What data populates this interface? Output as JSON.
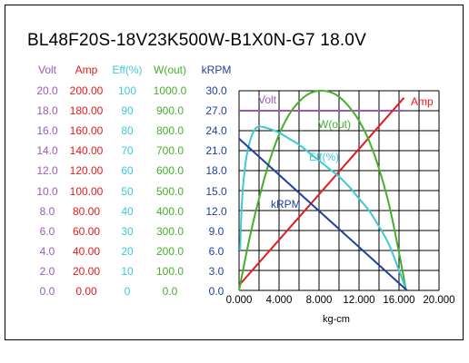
{
  "title": "BL48F20S-18V23K500W-B1X0N-G7   18.0V",
  "columns": [
    {
      "name": "Volt",
      "color": "#9b59b6",
      "ticks": [
        "20.0",
        "18.0",
        "16.0",
        "14.0",
        "12.0",
        "10.0",
        "8.0",
        "6.0",
        "4.0",
        "2.0",
        "0.0"
      ]
    },
    {
      "name": "Amp",
      "color": "#e41a1c",
      "ticks": [
        "200.00",
        "180.00",
        "160.00",
        "140.00",
        "120.00",
        "100.00",
        "80.00",
        "60.00",
        "40.00",
        "20.00",
        "0.00"
      ]
    },
    {
      "name": "Eff(%)",
      "color": "#3ec9d6",
      "ticks": [
        "100",
        "90",
        "80",
        "70",
        "60",
        "50",
        "40",
        "30",
        "20",
        "10",
        "0"
      ]
    },
    {
      "name": "W(out)",
      "color": "#44b02a",
      "ticks": [
        "1000.0",
        "900.0",
        "800.0",
        "700.0",
        "600.0",
        "500.0",
        "400.0",
        "300.0",
        "200.0",
        "100.0",
        "0.0"
      ]
    },
    {
      "name": "kRPM",
      "color": "#1f3f9e",
      "ticks": [
        "30.0",
        "27.0",
        "24.0",
        "21.0",
        "18.0",
        "15.0",
        "12.0",
        "9.0",
        "6.0",
        "3.0",
        "0.0"
      ]
    }
  ],
  "chart_data": {
    "type": "line",
    "xlabel": "kg-cm",
    "xlim": [
      0,
      20
    ],
    "x_ticks": [
      "0.000",
      "4.000",
      "8.000",
      "12.000",
      "16.000",
      "20.000"
    ],
    "grid": true,
    "series": [
      {
        "name": "Volt",
        "color": "#9b59b6",
        "ylim": [
          0,
          20
        ],
        "points": [
          [
            0,
            18.0
          ],
          [
            16.5,
            18.0
          ]
        ]
      },
      {
        "name": "Amp",
        "color": "#e41a1c",
        "ylim": [
          0,
          200
        ],
        "points": [
          [
            0,
            5
          ],
          [
            16.5,
            193
          ]
        ]
      },
      {
        "name": "W(out)",
        "color": "#44b02a",
        "ylim": [
          0,
          1000
        ],
        "points": [
          [
            0,
            0
          ],
          [
            1,
            250
          ],
          [
            2,
            460
          ],
          [
            3,
            640
          ],
          [
            4,
            780
          ],
          [
            5,
            880
          ],
          [
            6,
            945
          ],
          [
            7,
            985
          ],
          [
            8,
            1000
          ],
          [
            9,
            995
          ],
          [
            10,
            970
          ],
          [
            11,
            920
          ],
          [
            12,
            850
          ],
          [
            13,
            750
          ],
          [
            14,
            610
          ],
          [
            15,
            430
          ],
          [
            16,
            190
          ],
          [
            16.7,
            0
          ]
        ]
      },
      {
        "name": "Eff(%)",
        "color": "#3ec9d6",
        "ylim": [
          0,
          100
        ],
        "points": [
          [
            0.1,
            20
          ],
          [
            0.3,
            45
          ],
          [
            0.6,
            62
          ],
          [
            1,
            73
          ],
          [
            1.5,
            80
          ],
          [
            2,
            82
          ],
          [
            3,
            81
          ],
          [
            4,
            79
          ],
          [
            5,
            76
          ],
          [
            6,
            73
          ],
          [
            7,
            69
          ],
          [
            8,
            65
          ],
          [
            9,
            61
          ],
          [
            10,
            57
          ],
          [
            11,
            52
          ],
          [
            12,
            46
          ],
          [
            13,
            40
          ],
          [
            14,
            32
          ],
          [
            15,
            23
          ],
          [
            16,
            10
          ],
          [
            16.6,
            2
          ]
        ]
      },
      {
        "name": "kRPM",
        "color": "#1f3f9e",
        "ylim": [
          0,
          30
        ],
        "points": [
          [
            0,
            22.8
          ],
          [
            16.8,
            0
          ]
        ]
      }
    ],
    "annotations": [
      {
        "text": "Volt",
        "color": "#9b59b6"
      },
      {
        "text": "Amp",
        "color": "#e41a1c"
      },
      {
        "text": "W(out)",
        "color": "#44b02a"
      },
      {
        "text": "Eff(%)",
        "color": "#3ec9d6"
      },
      {
        "text": "kRPM",
        "color": "#1f3f9e"
      }
    ]
  }
}
